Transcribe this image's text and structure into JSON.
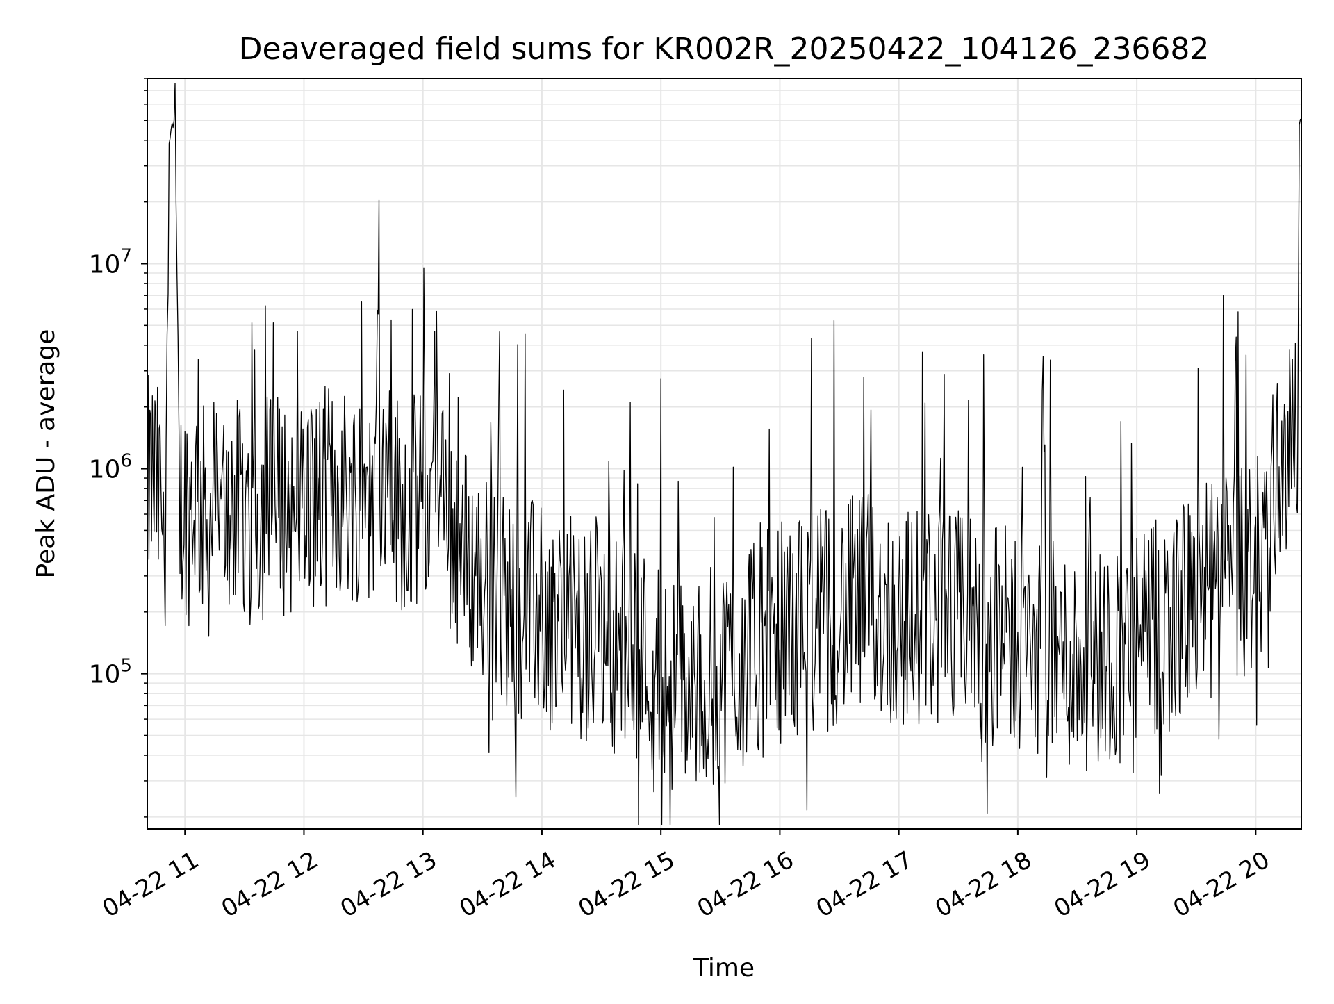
{
  "chart_data": {
    "type": "line",
    "title": "Deaveraged field sums for KR002R_20250422_104126_236682",
    "xlabel": "Time",
    "ylabel": "Peak ADU - average",
    "yscale": "log",
    "grid": true,
    "legend": "none",
    "line_color": "#000000",
    "grid_color": "#e6e6e6",
    "xlim": [
      "2025-04-22 10:41",
      "2025-04-22 20:23"
    ],
    "ylim": [
      17500,
      80000000
    ],
    "x_ticks": [
      {
        "value": "2025-04-22 11:00",
        "label": "04-22 11"
      },
      {
        "value": "2025-04-22 12:00",
        "label": "04-22 12"
      },
      {
        "value": "2025-04-22 13:00",
        "label": "04-22 13"
      },
      {
        "value": "2025-04-22 14:00",
        "label": "04-22 14"
      },
      {
        "value": "2025-04-22 15:00",
        "label": "04-22 15"
      },
      {
        "value": "2025-04-22 16:00",
        "label": "04-22 16"
      },
      {
        "value": "2025-04-22 17:00",
        "label": "04-22 17"
      },
      {
        "value": "2025-04-22 18:00",
        "label": "04-22 18"
      },
      {
        "value": "2025-04-22 19:00",
        "label": "04-22 19"
      },
      {
        "value": "2025-04-22 20:00",
        "label": "04-22 20"
      }
    ],
    "y_ticks": [
      {
        "value": 100000,
        "base": "10",
        "exp": "5"
      },
      {
        "value": 1000000,
        "base": "10",
        "exp": "6"
      },
      {
        "value": 10000000,
        "base": "10",
        "exp": "7"
      }
    ],
    "series": [
      {
        "x": [
          "2025-04-22 10:41",
          "2025-04-22 10:44",
          "2025-04-22 10:47",
          "2025-04-22 10:50",
          "2025-04-22 10:52",
          "2025-04-22 10:53",
          "2025-04-22 10:55",
          "2025-04-22 10:57",
          "2025-04-22 10:58",
          "2025-04-22 11:00",
          "2025-04-22 11:02",
          "2025-04-22 11:05",
          "2025-04-22 11:08",
          "2025-04-22 11:12",
          "2025-04-22 11:15",
          "2025-04-22 11:20",
          "2025-04-22 11:25",
          "2025-04-22 11:30",
          "2025-04-22 11:37",
          "2025-04-22 11:45",
          "2025-04-22 11:53",
          "2025-04-22 12:00",
          "2025-04-22 12:08",
          "2025-04-22 12:16",
          "2025-04-22 12:24",
          "2025-04-22 12:30",
          "2025-04-22 12:35",
          "2025-04-22 12:37",
          "2025-04-22 12:40",
          "2025-04-22 12:48",
          "2025-04-22 12:56",
          "2025-04-22 13:00",
          "2025-04-22 13:05",
          "2025-04-22 13:12",
          "2025-04-22 13:20",
          "2025-04-22 13:28",
          "2025-04-22 13:36",
          "2025-04-22 13:45",
          "2025-04-22 13:52",
          "2025-04-22 14:00",
          "2025-04-22 14:07",
          "2025-04-22 14:15",
          "2025-04-22 14:22",
          "2025-04-22 14:30",
          "2025-04-22 14:37",
          "2025-04-22 14:45",
          "2025-04-22 14:52",
          "2025-04-22 15:00",
          "2025-04-22 15:07",
          "2025-04-22 15:15",
          "2025-04-22 15:22",
          "2025-04-22 15:30",
          "2025-04-22 15:37",
          "2025-04-22 15:45",
          "2025-04-22 15:52",
          "2025-04-22 16:00",
          "2025-04-22 16:07",
          "2025-04-22 16:15",
          "2025-04-22 16:22",
          "2025-04-22 16:30",
          "2025-04-22 16:37",
          "2025-04-22 16:45",
          "2025-04-22 16:52",
          "2025-04-22 17:00",
          "2025-04-22 17:07",
          "2025-04-22 17:15",
          "2025-04-22 17:22",
          "2025-04-22 17:30",
          "2025-04-22 17:37",
          "2025-04-22 17:45",
          "2025-04-22 17:52",
          "2025-04-22 18:00",
          "2025-04-22 18:07",
          "2025-04-22 18:15",
          "2025-04-22 18:22",
          "2025-04-22 18:30",
          "2025-04-22 18:37",
          "2025-04-22 18:45",
          "2025-04-22 18:52",
          "2025-04-22 19:00",
          "2025-04-22 19:07",
          "2025-04-22 19:15",
          "2025-04-22 19:22",
          "2025-04-22 19:30",
          "2025-04-22 19:37",
          "2025-04-22 19:45",
          "2025-04-22 19:52",
          "2025-04-22 20:00",
          "2025-04-22 20:05",
          "2025-04-22 20:10",
          "2025-04-22 20:14",
          "2025-04-22 20:18",
          "2025-04-22 20:20",
          "2025-04-22 20:21",
          "2025-04-22 20:22",
          "2025-04-22 20:23"
        ],
        "y": [
          800000,
          900000,
          700000,
          600000,
          38000000,
          45000000,
          52000000,
          700000,
          650000,
          700000,
          600000,
          800000,
          650000,
          500000,
          700000,
          600000,
          650000,
          550000,
          600000,
          700000,
          650000,
          750000,
          700000,
          800000,
          750000,
          850000,
          700000,
          5000000,
          800000,
          700000,
          650000,
          800000,
          700000,
          600000,
          400000,
          300000,
          250000,
          220000,
          200000,
          200000,
          180000,
          170000,
          160000,
          150000,
          140000,
          150000,
          120000,
          100000,
          90000,
          85000,
          90000,
          100000,
          110000,
          120000,
          140000,
          160000,
          170000,
          180000,
          190000,
          200000,
          210000,
          220000,
          200000,
          180000,
          190000,
          200000,
          190000,
          180000,
          170000,
          160000,
          150000,
          150000,
          140000,
          130000,
          120000,
          115000,
          120000,
          125000,
          130000,
          140000,
          150000,
          180000,
          200000,
          220000,
          250000,
          280000,
          300000,
          350000,
          450000,
          900000,
          1200000,
          1300000,
          1400000,
          1500000,
          45000000,
          50000000
        ]
      }
    ]
  }
}
